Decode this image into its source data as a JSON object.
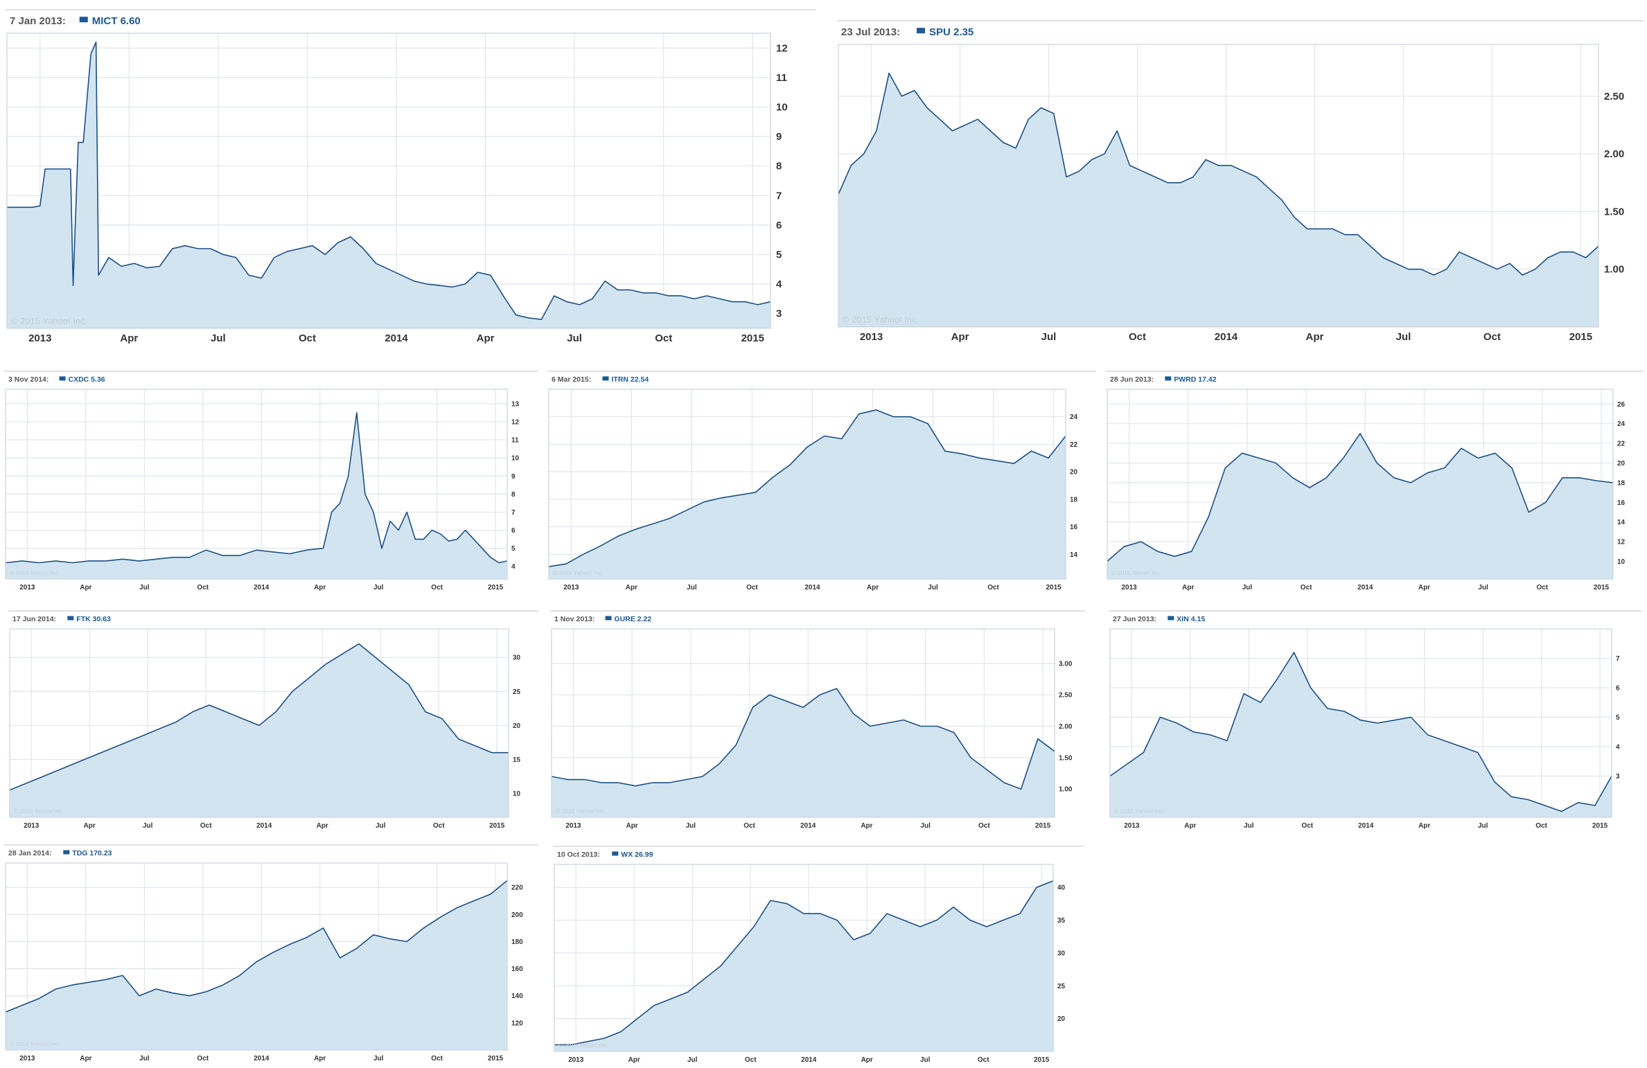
{
  "copyright": "© 2015 Yahoo! Inc.",
  "x_labels": [
    "2013",
    "Apr",
    "Jul",
    "Oct",
    "2014",
    "Apr",
    "Jul",
    "Oct",
    "2015"
  ],
  "colors": {
    "line": "#1c4f83",
    "fill": "#d3e4f1",
    "grid": "#dfe6ec",
    "symbol": "#1c5a93"
  },
  "chart_data": [
    {
      "type": "area",
      "date": "7 Jan 2013:",
      "symbol": "MICT",
      "value": "6.60",
      "ylim": [
        2.5,
        12.5
      ],
      "yticks": [
        {
          "v": 3,
          "label": "3"
        },
        {
          "v": 4,
          "label": "4"
        },
        {
          "v": 5,
          "label": "5"
        },
        {
          "v": 6,
          "label": "6"
        },
        {
          "v": 7,
          "label": "7"
        },
        {
          "v": 8,
          "label": "8"
        },
        {
          "v": 9,
          "label": "9"
        },
        {
          "v": 10,
          "label": "10"
        },
        {
          "v": 11,
          "label": "11"
        },
        {
          "v": 12,
          "label": "12"
        }
      ],
      "x": [
        0,
        0.5,
        1,
        1.3,
        1.5,
        2,
        2.5,
        2.6,
        2.8,
        2.9,
        3.0,
        3.3,
        3.5,
        3.6,
        4,
        4.5,
        5,
        5.5,
        6,
        6.5,
        7,
        7.5,
        8,
        8.5,
        9,
        9.5,
        10,
        10.5,
        11,
        11.5,
        12,
        12.5,
        13,
        13.5,
        14,
        14.5,
        15,
        15.5,
        16,
        16.5,
        17,
        17.5,
        18,
        18.5,
        19,
        19.5,
        20,
        20.5,
        21,
        21.5,
        22,
        22.5,
        23,
        23.5,
        24,
        24.5,
        25,
        25.5,
        26,
        26.5,
        27,
        27.5,
        28,
        28.5,
        29,
        29.5,
        30
      ],
      "y": [
        6.6,
        6.6,
        6.6,
        6.65,
        7.9,
        7.9,
        7.9,
        3.95,
        8.8,
        8.8,
        8.8,
        11.8,
        12.2,
        4.3,
        4.9,
        4.6,
        4.7,
        4.55,
        4.6,
        5.2,
        5.3,
        5.2,
        5.2,
        5.0,
        4.9,
        4.3,
        4.2,
        4.9,
        5.1,
        5.2,
        5.3,
        5.0,
        5.4,
        5.6,
        5.2,
        4.7,
        4.5,
        4.3,
        4.1,
        4.0,
        3.95,
        3.9,
        4.0,
        4.4,
        4.3,
        3.6,
        2.95,
        2.85,
        2.8,
        3.6,
        3.4,
        3.3,
        3.5,
        4.1,
        3.8,
        3.8,
        3.7,
        3.7,
        3.6,
        3.6,
        3.5,
        3.6,
        3.5,
        3.4,
        3.4,
        3.3,
        3.4
      ]
    },
    {
      "type": "area",
      "date": "23 Jul 2013:",
      "symbol": "SPU",
      "value": "2.35",
      "ylim": [
        0.5,
        2.95
      ],
      "yticks": [
        {
          "v": 1.0,
          "label": "1.00"
        },
        {
          "v": 1.5,
          "label": "1.50"
        },
        {
          "v": 2.0,
          "label": "2.00"
        },
        {
          "v": 2.5,
          "label": "2.50"
        }
      ],
      "x": [
        0,
        0.5,
        1,
        1.5,
        2,
        2.5,
        3,
        3.5,
        4,
        4.5,
        5,
        5.5,
        6,
        6.5,
        7,
        7.5,
        8,
        8.5,
        9,
        9.5,
        10,
        10.5,
        11,
        11.5,
        12,
        12.5,
        13,
        13.5,
        14,
        14.5,
        15,
        15.5,
        16,
        16.5,
        17,
        17.5,
        18,
        18.5,
        19,
        19.5,
        20,
        20.5,
        21,
        21.5,
        22,
        22.5,
        23,
        23.5,
        24,
        24.5,
        25,
        25.5,
        26,
        26.5,
        27,
        27.5,
        28,
        28.5,
        29,
        29.5,
        30
      ],
      "y": [
        1.65,
        1.9,
        2.0,
        2.2,
        2.7,
        2.5,
        2.55,
        2.4,
        2.3,
        2.2,
        2.25,
        2.3,
        2.2,
        2.1,
        2.05,
        2.3,
        2.4,
        2.35,
        1.8,
        1.85,
        1.95,
        2.0,
        2.2,
        1.9,
        1.85,
        1.8,
        1.75,
        1.75,
        1.8,
        1.95,
        1.9,
        1.9,
        1.85,
        1.8,
        1.7,
        1.6,
        1.45,
        1.35,
        1.35,
        1.35,
        1.3,
        1.3,
        1.2,
        1.1,
        1.05,
        1.0,
        1.0,
        0.95,
        1.0,
        1.15,
        1.1,
        1.05,
        1.0,
        1.05,
        0.95,
        1.0,
        1.1,
        1.15,
        1.15,
        1.1,
        1.2
      ]
    },
    {
      "type": "area",
      "date": "3 Nov 2014:",
      "symbol": "CXDC",
      "value": "5.36",
      "ylim": [
        3.3,
        13.8
      ],
      "yticks": [
        {
          "v": 4,
          "label": "4"
        },
        {
          "v": 5,
          "label": "5"
        },
        {
          "v": 6,
          "label": "6"
        },
        {
          "v": 7,
          "label": "7"
        },
        {
          "v": 8,
          "label": "8"
        },
        {
          "v": 9,
          "label": "9"
        },
        {
          "v": 10,
          "label": "10"
        },
        {
          "v": 11,
          "label": "11"
        },
        {
          "v": 12,
          "label": "12"
        },
        {
          "v": 13,
          "label": "13"
        }
      ],
      "x": [
        0,
        1,
        2,
        3,
        4,
        5,
        6,
        7,
        8,
        9,
        10,
        11,
        12,
        13,
        14,
        15,
        16,
        17,
        18,
        19,
        19.5,
        20,
        20.5,
        21,
        21.5,
        22,
        22.5,
        23,
        23.5,
        24,
        24.5,
        25,
        25.5,
        26,
        26.5,
        27,
        27.5,
        28,
        28.5,
        29,
        29.5,
        30
      ],
      "y": [
        4.2,
        4.3,
        4.2,
        4.3,
        4.2,
        4.3,
        4.3,
        4.4,
        4.3,
        4.4,
        4.5,
        4.5,
        4.9,
        4.6,
        4.6,
        4.9,
        4.8,
        4.7,
        4.9,
        5.0,
        7.0,
        7.5,
        9.0,
        12.5,
        8.0,
        7.0,
        5.0,
        6.5,
        6.0,
        7.0,
        5.5,
        5.5,
        6.0,
        5.8,
        5.4,
        5.5,
        6.0,
        5.5,
        5.0,
        4.5,
        4.2,
        4.3
      ]
    },
    {
      "type": "area",
      "date": "6 Mar 2015:",
      "symbol": "ITRN",
      "value": "22.54",
      "ylim": [
        12.2,
        26.0
      ],
      "yticks": [
        {
          "v": 14,
          "label": "14"
        },
        {
          "v": 16,
          "label": "16"
        },
        {
          "v": 18,
          "label": "18"
        },
        {
          "v": 20,
          "label": "20"
        },
        {
          "v": 22,
          "label": "22"
        },
        {
          "v": 24,
          "label": "24"
        }
      ],
      "x": [
        0,
        1,
        2,
        3,
        4,
        5,
        6,
        7,
        8,
        9,
        10,
        11,
        12,
        13,
        14,
        15,
        16,
        17,
        18,
        19,
        20,
        21,
        22,
        23,
        24,
        25,
        26,
        27,
        28,
        29,
        30
      ],
      "y": [
        13.1,
        13.3,
        14.0,
        14.6,
        15.3,
        15.8,
        16.2,
        16.6,
        17.2,
        17.8,
        18.1,
        18.3,
        18.5,
        19.6,
        20.5,
        21.8,
        22.6,
        22.4,
        24.2,
        24.5,
        24.0,
        24.0,
        23.5,
        21.5,
        21.3,
        21.0,
        20.8,
        20.6,
        21.5,
        21.0,
        22.6
      ]
    },
    {
      "type": "area",
      "date": "28 Jun 2013:",
      "symbol": "PWRD",
      "value": "17.42",
      "ylim": [
        8.2,
        27.5
      ],
      "yticks": [
        {
          "v": 10,
          "label": "10"
        },
        {
          "v": 12,
          "label": "12"
        },
        {
          "v": 14,
          "label": "14"
        },
        {
          "v": 16,
          "label": "16"
        },
        {
          "v": 18,
          "label": "18"
        },
        {
          "v": 20,
          "label": "20"
        },
        {
          "v": 22,
          "label": "22"
        },
        {
          "v": 24,
          "label": "24"
        },
        {
          "v": 26,
          "label": "26"
        }
      ],
      "x": [
        0,
        1,
        2,
        3,
        4,
        5,
        6,
        7,
        8,
        9,
        10,
        11,
        12,
        13,
        14,
        15,
        16,
        17,
        18,
        19,
        20,
        21,
        22,
        23,
        24,
        25,
        26,
        27,
        28,
        29,
        30
      ],
      "y": [
        10.0,
        11.5,
        12.0,
        11.0,
        10.5,
        11.0,
        14.5,
        19.5,
        21.0,
        20.5,
        20.0,
        18.5,
        17.5,
        18.5,
        20.5,
        23.0,
        20.0,
        18.5,
        18.0,
        19.0,
        19.5,
        21.5,
        20.5,
        21.0,
        19.5,
        15.0,
        16.0,
        18.5,
        18.5,
        18.2,
        18.0
      ]
    },
    {
      "type": "area",
      "date": "17 Jun 2014:",
      "symbol": "FTK",
      "value": "30.63",
      "ylim": [
        6.5,
        34.2
      ],
      "yticks": [
        {
          "v": 10,
          "label": "10"
        },
        {
          "v": 15,
          "label": "15"
        },
        {
          "v": 20,
          "label": "20"
        },
        {
          "v": 25,
          "label": "25"
        },
        {
          "v": 30,
          "label": "30"
        }
      ],
      "x": [
        0,
        1,
        2,
        3,
        4,
        5,
        6,
        7,
        8,
        9,
        10,
        11,
        12,
        13,
        14,
        15,
        16,
        17,
        18,
        19,
        20,
        21,
        22,
        23,
        24,
        25,
        26,
        27,
        28,
        29,
        30
      ],
      "y": [
        10.5,
        11.5,
        12.5,
        13.5,
        14.5,
        15.5,
        16.5,
        17.5,
        18.5,
        19.5,
        20.5,
        22.0,
        23.0,
        22.0,
        21.0,
        20.0,
        22.0,
        25.0,
        27.0,
        29.0,
        30.5,
        32.0,
        30.0,
        28.0,
        26.0,
        22.0,
        21.0,
        18.0,
        17.0,
        16.0,
        16.0
      ]
    },
    {
      "type": "area",
      "date": "1 Nov 2013:",
      "symbol": "GURE",
      "value": "2.22",
      "ylim": [
        0.55,
        3.55
      ],
      "yticks": [
        {
          "v": 1.0,
          "label": "1.00"
        },
        {
          "v": 1.5,
          "label": "1.50"
        },
        {
          "v": 2.0,
          "label": "2.00"
        },
        {
          "v": 2.5,
          "label": "2.50"
        },
        {
          "v": 3.0,
          "label": "3.00"
        }
      ],
      "x": [
        0,
        1,
        2,
        3,
        4,
        5,
        6,
        7,
        8,
        9,
        10,
        11,
        12,
        13,
        14,
        15,
        16,
        17,
        18,
        19,
        20,
        21,
        22,
        23,
        24,
        25,
        26,
        27,
        28,
        29,
        30
      ],
      "y": [
        1.2,
        1.15,
        1.15,
        1.1,
        1.1,
        1.05,
        1.1,
        1.1,
        1.15,
        1.2,
        1.4,
        1.7,
        2.3,
        2.5,
        2.4,
        2.3,
        2.5,
        2.6,
        2.2,
        2.0,
        2.05,
        2.1,
        2.0,
        2.0,
        1.9,
        1.5,
        1.3,
        1.1,
        1.0,
        1.8,
        1.6
      ]
    },
    {
      "type": "area",
      "date": "27 Jun 2013:",
      "symbol": "XIN",
      "value": "4.15",
      "ylim": [
        1.6,
        8.0
      ],
      "yticks": [
        {
          "v": 3,
          "label": "3"
        },
        {
          "v": 4,
          "label": "4"
        },
        {
          "v": 5,
          "label": "5"
        },
        {
          "v": 6,
          "label": "6"
        },
        {
          "v": 7,
          "label": "7"
        }
      ],
      "x": [
        0,
        1,
        2,
        3,
        4,
        5,
        6,
        7,
        8,
        9,
        10,
        11,
        12,
        13,
        14,
        15,
        16,
        17,
        18,
        19,
        20,
        21,
        22,
        23,
        24,
        25,
        26,
        27,
        28,
        29,
        30
      ],
      "y": [
        3.0,
        3.4,
        3.8,
        5.0,
        4.8,
        4.5,
        4.4,
        4.2,
        5.8,
        5.5,
        6.3,
        7.2,
        6.0,
        5.3,
        5.2,
        4.9,
        4.8,
        4.9,
        5.0,
        4.4,
        4.2,
        4.0,
        3.8,
        2.8,
        2.3,
        2.2,
        2.0,
        1.8,
        2.1,
        2.0,
        3.0
      ]
    },
    {
      "type": "area",
      "date": "28 Jan 2014:",
      "symbol": "TDG",
      "value": "170.23",
      "ylim": [
        100,
        238
      ],
      "yticks": [
        {
          "v": 120,
          "label": "120"
        },
        {
          "v": 140,
          "label": "140"
        },
        {
          "v": 160,
          "label": "160"
        },
        {
          "v": 180,
          "label": "180"
        },
        {
          "v": 200,
          "label": "200"
        },
        {
          "v": 220,
          "label": "220"
        }
      ],
      "x": [
        0,
        1,
        2,
        3,
        4,
        5,
        6,
        7,
        8,
        9,
        10,
        11,
        12,
        13,
        14,
        15,
        16,
        17,
        18,
        19,
        20,
        21,
        22,
        23,
        24,
        25,
        26,
        27,
        28,
        29,
        30
      ],
      "y": [
        128,
        133,
        138,
        145,
        148,
        150,
        152,
        155,
        140,
        145,
        142,
        140,
        143,
        148,
        155,
        165,
        172,
        178,
        183,
        190,
        168,
        175,
        185,
        182,
        180,
        190,
        198,
        205,
        210,
        215,
        225
      ]
    },
    {
      "type": "area",
      "date": "10 Oct 2013:",
      "symbol": "WX",
      "value": "26.99",
      "ylim": [
        15.0,
        43.5
      ],
      "yticks": [
        {
          "v": 20,
          "label": "20"
        },
        {
          "v": 25,
          "label": "25"
        },
        {
          "v": 30,
          "label": "30"
        },
        {
          "v": 35,
          "label": "35"
        },
        {
          "v": 40,
          "label": "40"
        }
      ],
      "x": [
        0,
        1,
        2,
        3,
        4,
        5,
        6,
        7,
        8,
        9,
        10,
        11,
        12,
        13,
        14,
        15,
        16,
        17,
        18,
        19,
        20,
        21,
        22,
        23,
        24,
        25,
        26,
        27,
        28,
        29,
        30
      ],
      "y": [
        16.0,
        16.0,
        16.5,
        17.0,
        18.0,
        20.0,
        22.0,
        23.0,
        24.0,
        26.0,
        28.0,
        31.0,
        34.0,
        38.0,
        37.5,
        36.0,
        36.0,
        35.0,
        32.0,
        33.0,
        36.0,
        35.0,
        34.0,
        35.0,
        37.0,
        35.0,
        34.0,
        35.0,
        36.0,
        40.0,
        41.0
      ]
    }
  ]
}
